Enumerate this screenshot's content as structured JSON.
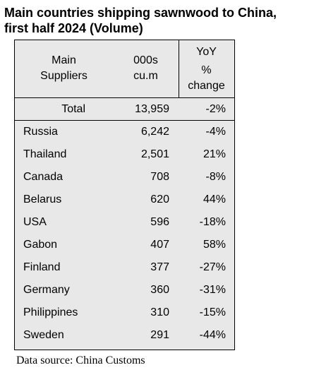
{
  "title": {
    "line1": "Main countries shipping sawnwood to China,",
    "line2": " first half 2024 (Volume)"
  },
  "table": {
    "headers": {
      "col1": [
        "Main",
        "Suppliers"
      ],
      "col2": [
        "000s",
        "cu.m"
      ],
      "col3": [
        "YoY",
        "%",
        "change"
      ]
    },
    "total": {
      "label": "Total",
      "volume": "13,959",
      "yoy": "-2%"
    },
    "rows": [
      {
        "country": "Russia",
        "volume": "6,242",
        "yoy": "-4%"
      },
      {
        "country": "Thailand",
        "volume": "2,501",
        "yoy": "21%"
      },
      {
        "country": "Canada",
        "volume": "708",
        "yoy": "-8%"
      },
      {
        "country": "Belarus",
        "volume": "620",
        "yoy": "44%"
      },
      {
        "country": "USA",
        "volume": "596",
        "yoy": "-18%"
      },
      {
        "country": "Gabon",
        "volume": "407",
        "yoy": "58%"
      },
      {
        "country": "Finland",
        "volume": "377",
        "yoy": "-27%"
      },
      {
        "country": "Germany",
        "volume": "360",
        "yoy": "-31%"
      },
      {
        "country": "Philippines",
        "volume": "310",
        "yoy": "-15%"
      },
      {
        "country": "Sweden",
        "volume": "291",
        "yoy": "-44%"
      }
    ]
  },
  "source": "Data source: China Customs",
  "colors": {
    "table_background": "#e8e8e8",
    "border": "#000000"
  }
}
